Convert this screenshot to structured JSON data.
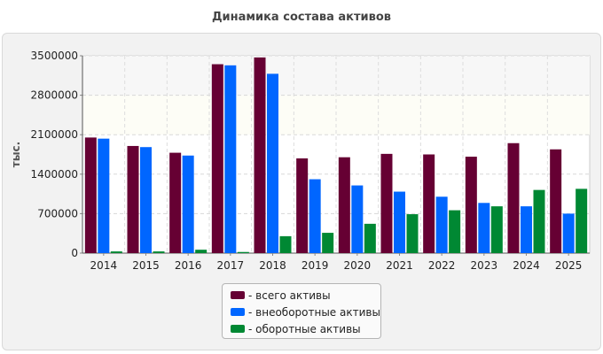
{
  "chart_data": {
    "type": "bar",
    "title": "Динамика состава активов",
    "ylabel": "тыс.",
    "xlabel": "",
    "ylim": [
      0,
      3500000
    ],
    "yticks": [
      0,
      700000,
      1400000,
      2100000,
      2800000,
      3500000
    ],
    "grid": true,
    "legend_position": "bottom",
    "categories": [
      "2014",
      "2015",
      "2016",
      "2017",
      "2018",
      "2019",
      "2020",
      "2021",
      "2022",
      "2023",
      "2024",
      "2025"
    ],
    "series": [
      {
        "name": "- всего активы",
        "color": "#660033",
        "values": [
          2050000,
          1900000,
          1780000,
          3350000,
          3470000,
          1680000,
          1700000,
          1760000,
          1750000,
          1710000,
          1950000,
          1840000
        ]
      },
      {
        "name": "- внеоборотные активы",
        "color": "#0066ff",
        "values": [
          2030000,
          1880000,
          1730000,
          3330000,
          3180000,
          1310000,
          1200000,
          1090000,
          1000000,
          890000,
          830000,
          700000
        ]
      },
      {
        "name": "- оборотные активы",
        "color": "#008833",
        "values": [
          30000,
          30000,
          60000,
          20000,
          300000,
          360000,
          520000,
          690000,
          760000,
          830000,
          1120000,
          1140000
        ]
      }
    ]
  }
}
